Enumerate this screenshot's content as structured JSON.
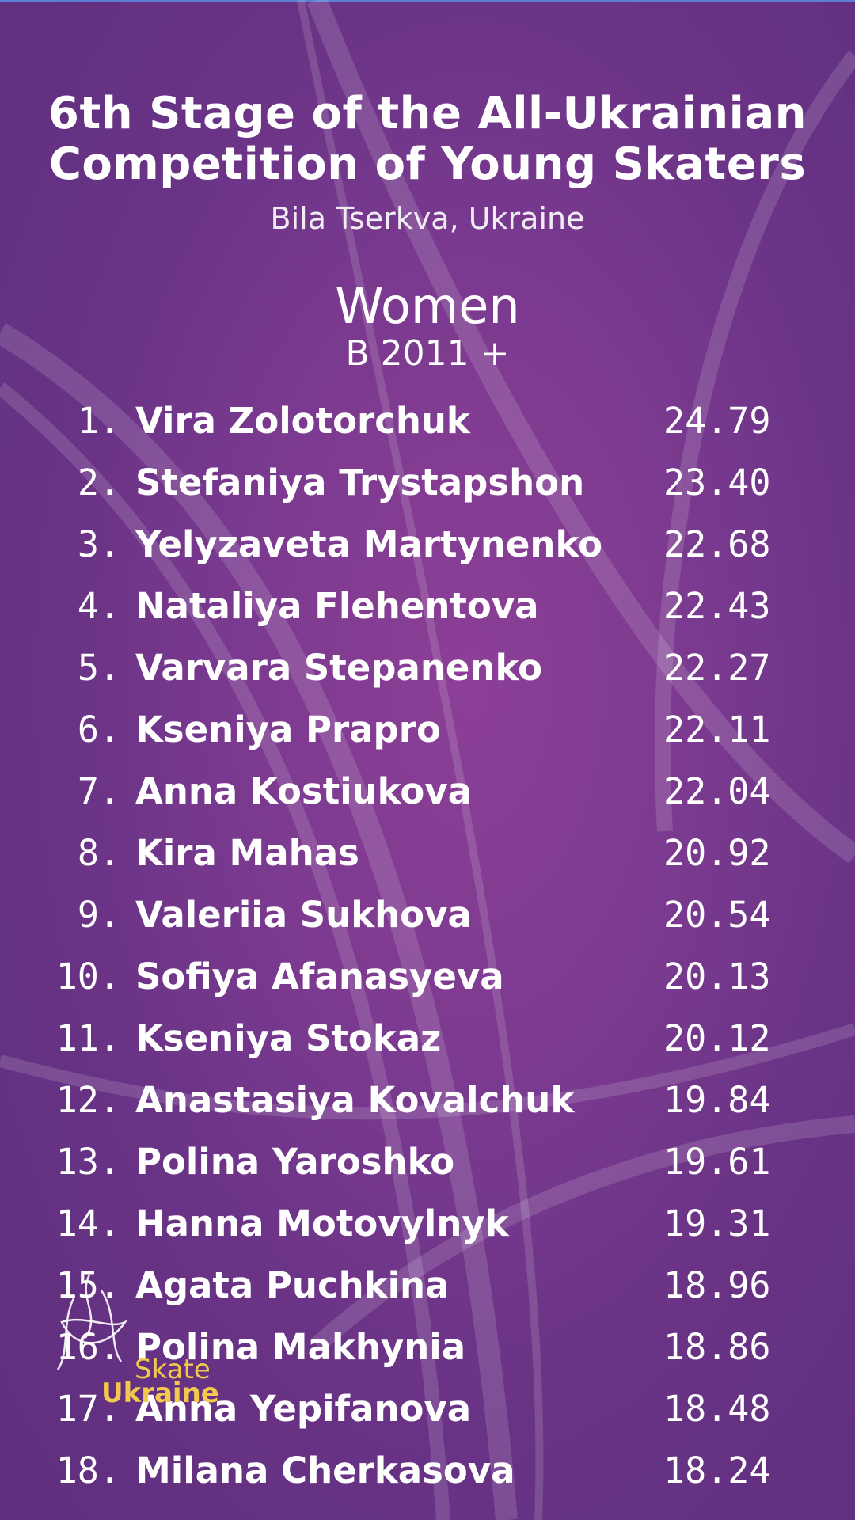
{
  "header": {
    "title_line1": "6th Stage of the All-Ukrainian",
    "title_line2": "Competition of Young Skaters",
    "location": "Bila Tserkva, Ukraine"
  },
  "category": {
    "title": "Women",
    "subtitle": "B 2011 +"
  },
  "results": [
    {
      "rank": "1.",
      "name": "Vira Zolotorchuk",
      "score": "24.79"
    },
    {
      "rank": "2.",
      "name": "Stefaniya Trystapshon",
      "score": "23.40"
    },
    {
      "rank": "3.",
      "name": "Yelyzaveta Martynenko",
      "score": "22.68"
    },
    {
      "rank": "4.",
      "name": "Nataliya Flehentova",
      "score": "22.43"
    },
    {
      "rank": "5.",
      "name": "Varvara Stepanenko",
      "score": "22.27"
    },
    {
      "rank": "6.",
      "name": "Kseniya Prapro",
      "score": "22.11"
    },
    {
      "rank": "7.",
      "name": "Anna Kostiukova",
      "score": "22.04"
    },
    {
      "rank": "8.",
      "name": "Kira Mahas",
      "score": "20.92"
    },
    {
      "rank": "9.",
      "name": "Valeriia Sukhova",
      "score": "20.54"
    },
    {
      "rank": "10.",
      "name": "Sofiya Afanasyeva",
      "score": "20.13"
    },
    {
      "rank": "11.",
      "name": "Kseniya Stokaz",
      "score": "20.12"
    },
    {
      "rank": "12.",
      "name": "Anastasiya Kovalchuk",
      "score": "19.84"
    },
    {
      "rank": "13.",
      "name": "Polina Yaroshko",
      "score": "19.61"
    },
    {
      "rank": "14.",
      "name": "Hanna Motovylnyk",
      "score": "19.31"
    },
    {
      "rank": "15.",
      "name": "Agata Puchkina",
      "score": "18.96"
    },
    {
      "rank": "16.",
      "name": "Polina Makhynia",
      "score": "18.86"
    },
    {
      "rank": "17.",
      "name": "Anna Yepifanova",
      "score": "18.48"
    },
    {
      "rank": "18.",
      "name": "Milana Cherkasova",
      "score": "18.24"
    }
  ],
  "logo": {
    "line1": "Skate",
    "line2": "Ukraine"
  },
  "colors": {
    "background": "#7a3a8f",
    "text": "#ffffff",
    "logo_accent": "#f2c94c"
  }
}
